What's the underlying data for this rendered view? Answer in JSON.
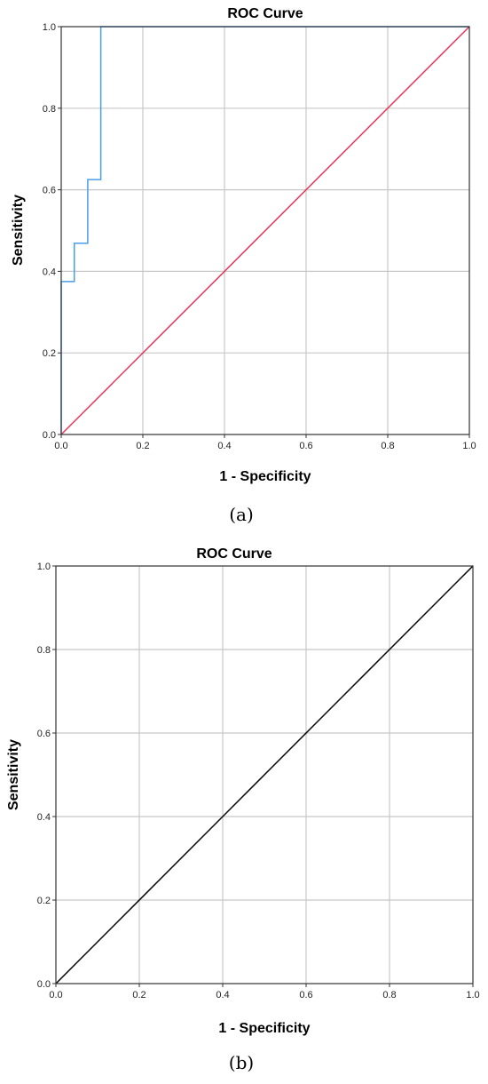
{
  "chart_data": [
    {
      "type": "line",
      "panel_label": "(a)",
      "title": "ROC Curve",
      "xlabel": "1 - Specificity",
      "ylabel": "Sensitivity",
      "xlim": [
        0.0,
        1.0
      ],
      "ylim": [
        0.0,
        1.0
      ],
      "xticks": [
        "0.0",
        "0.2",
        "0.4",
        "0.6",
        "0.8",
        "1.0"
      ],
      "yticks": [
        "0.0",
        "0.2",
        "0.4",
        "0.6",
        "0.8",
        "1.0"
      ],
      "grid": true,
      "legend": "none",
      "series": [
        {
          "color": "#4a9ee8",
          "x": [
            0.0,
            0.0,
            0.032,
            0.032,
            0.065,
            0.065,
            0.097,
            0.097,
            1.0
          ],
          "y": [
            0.0,
            0.375,
            0.375,
            0.469,
            0.469,
            0.625,
            0.625,
            1.0,
            1.0
          ]
        },
        {
          "color": "#e8355a",
          "x": [
            0.0,
            1.0
          ],
          "y": [
            0.0,
            1.0
          ]
        }
      ]
    },
    {
      "type": "line",
      "panel_label": "(b)",
      "title": "ROC Curve",
      "xlabel": "1 - Specificity",
      "ylabel": "Sensitivity",
      "xlim": [
        0.0,
        1.0
      ],
      "ylim": [
        0.0,
        1.0
      ],
      "xticks": [
        "0.0",
        "0.2",
        "0.4",
        "0.6",
        "0.8",
        "1.0"
      ],
      "yticks": [
        "0.0",
        "0.2",
        "0.4",
        "0.6",
        "0.8",
        "1.0"
      ],
      "grid": true,
      "legend": "none",
      "series": [
        {
          "color": "#000000",
          "x": [
            0.0,
            1.0
          ],
          "y": [
            0.0,
            1.0
          ]
        }
      ]
    }
  ]
}
